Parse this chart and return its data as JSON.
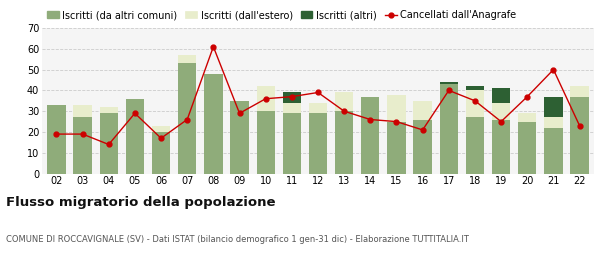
{
  "years": [
    "02",
    "03",
    "04",
    "05",
    "06",
    "07",
    "08",
    "09",
    "10",
    "11",
    "12",
    "13",
    "14",
    "15",
    "16",
    "17",
    "18",
    "19",
    "20",
    "21",
    "22"
  ],
  "iscritti_altri_comuni": [
    33,
    27,
    29,
    36,
    20,
    53,
    48,
    35,
    30,
    29,
    29,
    30,
    37,
    25,
    26,
    43,
    27,
    26,
    25,
    22,
    37
  ],
  "iscritti_estero": [
    0,
    6,
    3,
    0,
    3,
    4,
    0,
    0,
    12,
    5,
    5,
    9,
    0,
    13,
    9,
    0,
    13,
    8,
    4,
    5,
    5
  ],
  "iscritti_altri": [
    0,
    0,
    0,
    0,
    0,
    0,
    0,
    0,
    0,
    5,
    0,
    0,
    0,
    0,
    0,
    1,
    2,
    7,
    0,
    10,
    0
  ],
  "cancellati": [
    19,
    19,
    14,
    29,
    17,
    26,
    61,
    29,
    36,
    37,
    39,
    30,
    26,
    25,
    21,
    40,
    35,
    25,
    37,
    50,
    23
  ],
  "color_altri_comuni": "#8fac7a",
  "color_estero": "#e8edcc",
  "color_altri": "#2d6033",
  "color_cancellati": "#cc0000",
  "color_grid": "#cccccc",
  "color_bg": "#f5f5f5",
  "ylabel_max": 70,
  "yticks": [
    0,
    10,
    20,
    30,
    40,
    50,
    60,
    70
  ],
  "title": "Flusso migratorio della popolazione",
  "subtitle": "COMUNE DI ROCCAVIGNALE (SV) - Dati ISTAT (bilancio demografico 1 gen-31 dic) - Elaborazione TUTTITALIA.IT",
  "legend_labels": [
    "Iscritti (da altri comuni)",
    "Iscritti (dall'estero)",
    "Iscritti (altri)",
    "Cancellati dall'Anagrafe"
  ]
}
